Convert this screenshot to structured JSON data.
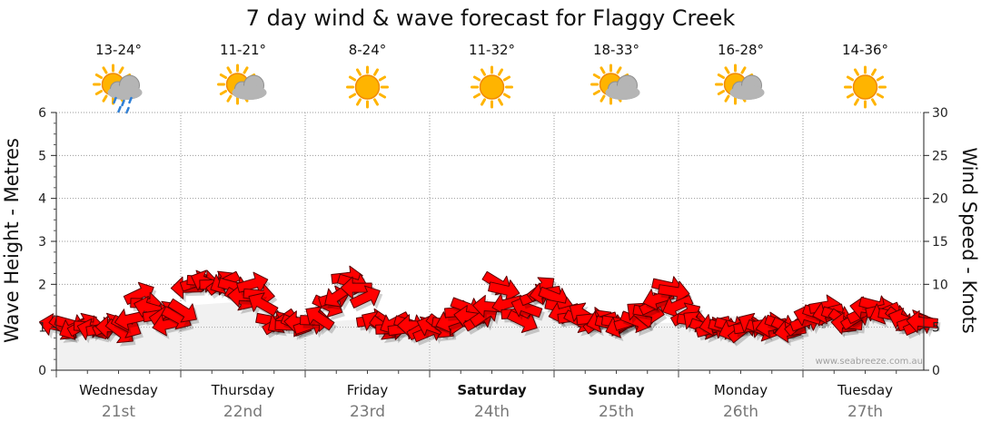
{
  "title": "7 day wind & wave forecast for Flaggy Creek",
  "watermark": "www.seabreeze.com.au",
  "days": [
    {
      "name": "Wednesday",
      "date": "21st",
      "temp": "13-24°",
      "icon": "sun-cloud-rain-icon",
      "bold": false
    },
    {
      "name": "Thursday",
      "date": "22nd",
      "temp": "11-21°",
      "icon": "sun-cloud-icon",
      "bold": false
    },
    {
      "name": "Friday",
      "date": "23rd",
      "temp": "8-24°",
      "icon": "sun-icon",
      "bold": false
    },
    {
      "name": "Saturday",
      "date": "24th",
      "temp": "11-32°",
      "icon": "sun-icon",
      "bold": true
    },
    {
      "name": "Sunday",
      "date": "25th",
      "temp": "18-33°",
      "icon": "sun-cloud-icon",
      "bold": true
    },
    {
      "name": "Monday",
      "date": "26th",
      "temp": "16-28°",
      "icon": "sun-cloud-icon",
      "bold": false
    },
    {
      "name": "Tuesday",
      "date": "27th",
      "temp": "14-36°",
      "icon": "sun-icon",
      "bold": false
    }
  ],
  "colors": {
    "arrow_fill": "#ff0000",
    "arrow_stroke": "#5a0000",
    "sun": "#ffb400",
    "cloud": "#b5b5b5",
    "rain": "#2f7fd6"
  },
  "chart_data": {
    "type": "line",
    "title": "7 day wind & wave forecast for Flaggy Creek",
    "y_left_label": "Wave Height - Metres",
    "y_right_label": "Wind Speed - Knots",
    "y_left_ticks": [
      "0",
      "1",
      "2",
      "3",
      "4",
      "5",
      "6"
    ],
    "y_right_ticks": [
      "0",
      "5",
      "10",
      "15",
      "20",
      "25",
      "30"
    ],
    "y_left_range": [
      0,
      6
    ],
    "y_right_range": [
      0,
      30
    ],
    "x_range_days": [
      0,
      6.9
    ],
    "grid": true,
    "series": [
      {
        "unit": "knots",
        "shown_as": "red direction arrows",
        "x_days": [
          0.0,
          0.05,
          0.1,
          0.15,
          0.2,
          0.25,
          0.3,
          0.35,
          0.4,
          0.45,
          0.5,
          0.55,
          0.6,
          0.65,
          0.7,
          0.75,
          0.8,
          0.85,
          0.9,
          0.95,
          1.0,
          1.05,
          1.1,
          1.15,
          1.2,
          1.25,
          1.3,
          1.35,
          1.4,
          1.45,
          1.5,
          1.55,
          1.6,
          1.65,
          1.7,
          1.75,
          1.8,
          1.85,
          1.9,
          1.95,
          2.0,
          2.05,
          2.1,
          2.15,
          2.2,
          2.25,
          2.3,
          2.35,
          2.4,
          2.45,
          2.5,
          2.55,
          2.6,
          2.65,
          2.7,
          2.75,
          2.8,
          2.85,
          2.9,
          2.95,
          3.0,
          3.05,
          3.1,
          3.15,
          3.2,
          3.25,
          3.3,
          3.35,
          3.4,
          3.45,
          3.5,
          3.55,
          3.6,
          3.65,
          3.7,
          3.75,
          3.8,
          3.85,
          3.9,
          3.95,
          4.0,
          4.05,
          4.1,
          4.15,
          4.2,
          4.25,
          4.3,
          4.35,
          4.4,
          4.45,
          4.5,
          4.55,
          4.6,
          4.65,
          4.7,
          4.75,
          4.8,
          4.85,
          4.9,
          4.95,
          5.0,
          5.05,
          5.1,
          5.15,
          5.2,
          5.25,
          5.3,
          5.35,
          5.4,
          5.45,
          5.5,
          5.55,
          5.6,
          5.65,
          5.7,
          5.75,
          5.8,
          5.85,
          5.9,
          5.95,
          6.0,
          6.05,
          6.1,
          6.15,
          6.2,
          6.25,
          6.3,
          6.35,
          6.4,
          6.45,
          6.5,
          6.55,
          6.6,
          6.65,
          6.7,
          6.75,
          6.8,
          6.85,
          6.9
        ],
        "values": [
          5.2,
          5.0,
          5.4,
          5.0,
          5.2,
          5.1,
          4.6,
          4.8,
          5.2,
          5.0,
          4.6,
          5.2,
          6.0,
          8.8,
          7.8,
          7.2,
          6.4,
          6.6,
          5.4,
          6.2,
          7.0,
          9.6,
          10.2,
          10.4,
          10.2,
          10.0,
          10.1,
          10.3,
          9.8,
          8.4,
          8.6,
          10.0,
          8.8,
          7.6,
          5.8,
          5.4,
          5.8,
          5.2,
          5.4,
          5.6,
          5.2,
          5.8,
          6.0,
          7.6,
          8.4,
          8.8,
          10.8,
          10.2,
          9.6,
          8.4,
          5.8,
          5.4,
          5.0,
          4.8,
          5.6,
          4.8,
          5.4,
          5.2,
          4.8,
          4.4,
          5.0,
          5.2,
          5.4,
          5.8,
          6.8,
          7.4,
          6.2,
          5.8,
          6.4,
          7.4,
          10.2,
          9.4,
          7.8,
          6.6,
          5.8,
          7.2,
          8.6,
          9.4,
          9.0,
          8.6,
          7.4,
          6.8,
          6.2,
          5.8,
          6.4,
          6.0,
          5.6,
          5.8,
          5.4,
          5.6,
          5.2,
          5.6,
          5.8,
          6.4,
          6.8,
          7.6,
          8.4,
          9.8,
          9.2,
          7.6,
          6.4,
          5.8,
          5.4,
          5.0,
          4.8,
          5.4,
          5.0,
          5.2,
          4.8,
          4.6,
          5.0,
          5.2,
          4.8,
          5.4,
          5.2,
          5.4,
          5.0,
          4.6,
          5.4,
          5.6,
          6.2,
          6.6,
          7.4,
          6.8,
          6.4,
          5.8,
          5.4,
          6.0,
          6.6,
          7.2,
          7.6,
          7.0,
          6.8,
          6.4,
          6.0,
          5.8,
          5.6,
          5.2,
          5.6
        ]
      },
      {
        "unit": "metres",
        "shown_as": "shaded wave height band",
        "x_days": [
          0.0,
          0.5,
          1.0,
          1.5,
          2.0,
          2.5,
          3.0,
          3.5,
          4.0,
          4.5,
          5.0,
          5.5,
          6.0,
          6.5,
          6.9
        ],
        "values": [
          1.0,
          1.0,
          1.5,
          1.6,
          1.1,
          1.2,
          1.0,
          1.3,
          1.4,
          1.1,
          1.1,
          1.3,
          1.0,
          1.2,
          1.1
        ]
      }
    ]
  }
}
